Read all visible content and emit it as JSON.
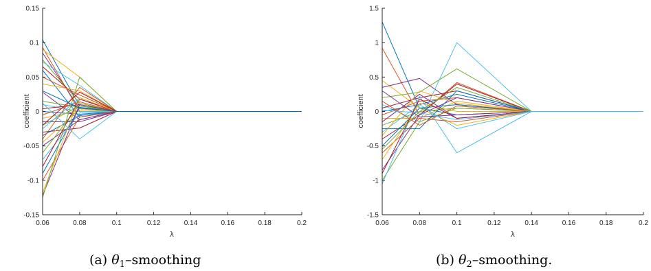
{
  "chart_data": [
    {
      "type": "line",
      "panel": "a",
      "caption": {
        "prefix": "(a) ",
        "symbol": "θ",
        "subscript": "1",
        "suffix": "–smoothing"
      },
      "xlabel": "λ",
      "ylabel": "coefficient",
      "xlim": [
        0.06,
        0.2
      ],
      "ylim": [
        -0.15,
        0.15
      ],
      "xticks": [
        0.06,
        0.08,
        0.1,
        0.12,
        0.14,
        0.16,
        0.18,
        0.2
      ],
      "xtick_labels": [
        "0.06",
        "0.08",
        "0.1",
        "0.12",
        "0.14",
        "0.16",
        "0.18",
        "0.2"
      ],
      "yticks": [
        -0.15,
        -0.1,
        -0.05,
        0,
        0.05,
        0.1,
        0.15
      ],
      "ytick_labels": [
        "-0.15",
        "-0.1",
        "-0.05",
        "0",
        "0.05",
        "0.1",
        "0.15"
      ],
      "grid": false,
      "legend": "none",
      "x": [
        0.06,
        0.08,
        0.1,
        0.12,
        0.14,
        0.16,
        0.18,
        0.2
      ],
      "series_values": [
        [
          0.104,
          0.008,
          0,
          0,
          0,
          0,
          0,
          0
        ],
        [
          0.093,
          0.0,
          0,
          0,
          0,
          0,
          0,
          0
        ],
        [
          0.09,
          0.05,
          0,
          0,
          0,
          0,
          0,
          0
        ],
        [
          0.085,
          0.004,
          0,
          0,
          0,
          0,
          0,
          0
        ],
        [
          0.075,
          0.012,
          0,
          0,
          0,
          0,
          0,
          0
        ],
        [
          0.072,
          0.038,
          0,
          0,
          0,
          0,
          0,
          0
        ],
        [
          0.065,
          0.018,
          0,
          0,
          0,
          0,
          0,
          0
        ],
        [
          0.06,
          -0.008,
          0,
          0,
          0,
          0,
          0,
          0
        ],
        [
          0.05,
          0.024,
          0,
          0,
          0,
          0,
          0,
          0
        ],
        [
          0.04,
          0.03,
          0,
          0,
          0,
          0,
          0,
          0
        ],
        [
          0.028,
          -0.012,
          0,
          0,
          0,
          0,
          0,
          0
        ],
        [
          0.015,
          0.006,
          0,
          0,
          0,
          0,
          0,
          0
        ],
        [
          0.01,
          0.0,
          0,
          0,
          0,
          0,
          0,
          0
        ],
        [
          0.004,
          0.01,
          0,
          0,
          0,
          0,
          0,
          0
        ],
        [
          0.0,
          -0.004,
          0,
          0,
          0,
          0,
          0,
          0
        ],
        [
          -0.005,
          0.014,
          0,
          0,
          0,
          0,
          0,
          0
        ],
        [
          -0.01,
          0.002,
          0,
          0,
          0,
          0,
          0,
          0
        ],
        [
          -0.015,
          -0.015,
          0,
          0,
          0,
          0,
          0,
          0
        ],
        [
          -0.02,
          0.008,
          0,
          0,
          0,
          0,
          0,
          0
        ],
        [
          -0.025,
          0.02,
          0,
          0,
          0,
          0,
          0,
          0
        ],
        [
          -0.03,
          -0.024,
          0,
          0,
          0,
          0,
          0,
          0
        ],
        [
          -0.035,
          -0.006,
          0,
          0,
          0,
          0,
          0,
          0
        ],
        [
          -0.04,
          0.035,
          0,
          0,
          0,
          0,
          0,
          0
        ],
        [
          -0.045,
          0.004,
          0,
          0,
          0,
          0,
          0,
          0
        ],
        [
          -0.05,
          -0.012,
          0,
          0,
          0,
          0,
          0,
          0
        ],
        [
          -0.06,
          0.01,
          0,
          0,
          0,
          0,
          0,
          0
        ],
        [
          -0.07,
          -0.002,
          0,
          0,
          0,
          0,
          0,
          0
        ],
        [
          -0.08,
          0.018,
          0,
          0,
          0,
          0,
          0,
          0
        ],
        [
          -0.09,
          0.006,
          0,
          0,
          0,
          0,
          0,
          0
        ],
        [
          -0.1,
          -0.008,
          0,
          0,
          0,
          0,
          0,
          0
        ],
        [
          -0.118,
          0.02,
          0,
          0,
          0,
          0,
          0,
          0
        ],
        [
          -0.122,
          0.01,
          0,
          0,
          0,
          0,
          0,
          0
        ],
        [
          -0.125,
          0.05,
          0,
          0,
          0,
          0,
          0,
          0
        ],
        [
          0.012,
          -0.04,
          0,
          0,
          0,
          0,
          0,
          0
        ],
        [
          -0.02,
          0.028,
          0,
          0,
          0,
          0,
          0,
          0
        ],
        [
          0.03,
          0.005,
          0,
          0,
          0,
          0,
          0,
          0
        ]
      ]
    },
    {
      "type": "line",
      "panel": "b",
      "caption": {
        "prefix": "(b) ",
        "symbol": "θ",
        "subscript": "2",
        "suffix": "–smoothing."
      },
      "xlabel": "λ",
      "ylabel": "coefficient",
      "xlim": [
        0.06,
        0.2
      ],
      "ylim": [
        -1.5,
        1.5
      ],
      "xticks": [
        0.06,
        0.08,
        0.1,
        0.12,
        0.14,
        0.16,
        0.18,
        0.2
      ],
      "xtick_labels": [
        "0.06",
        "0.08",
        "0.1",
        "0.12",
        "0.14",
        "0.16",
        "0.18",
        "0.2"
      ],
      "yticks": [
        -1.5,
        -1,
        -0.5,
        0,
        0.5,
        1,
        1.5
      ],
      "ytick_labels": [
        "-1.5",
        "-1",
        "-0.5",
        "0",
        "0.5",
        "1",
        "1.5"
      ],
      "grid": false,
      "legend": "none",
      "x": [
        0.06,
        0.08,
        0.1,
        0.14,
        0.16,
        0.18,
        0.2
      ],
      "series_values": [
        [
          1.3,
          0.05,
          -0.05,
          0,
          0,
          0,
          0
        ],
        [
          0.92,
          -0.05,
          0.42,
          0,
          0,
          0,
          0
        ],
        [
          0.45,
          0.05,
          -0.2,
          0,
          0,
          0,
          0
        ],
        [
          0.35,
          0.48,
          0.1,
          0,
          0,
          0,
          0
        ],
        [
          0.2,
          0.28,
          0.62,
          0,
          0,
          0,
          0
        ],
        [
          0.1,
          -0.15,
          1.0,
          0,
          0,
          0,
          0
        ],
        [
          0.05,
          0.2,
          0.3,
          0,
          0,
          0,
          0
        ],
        [
          0.0,
          0.1,
          0.25,
          0,
          0,
          0,
          0
        ],
        [
          -0.05,
          0.15,
          0.2,
          0,
          0,
          0,
          0
        ],
        [
          -0.1,
          -0.1,
          0.15,
          0,
          0,
          0,
          0
        ],
        [
          -0.15,
          0.25,
          -0.1,
          0,
          0,
          0,
          0
        ],
        [
          -0.2,
          0.0,
          0.05,
          0,
          0,
          0,
          0
        ],
        [
          -0.3,
          0.1,
          -0.25,
          0,
          0,
          0,
          0
        ],
        [
          -0.4,
          -0.05,
          0.4,
          0,
          0,
          0,
          0
        ],
        [
          -0.5,
          0.05,
          0.1,
          0,
          0,
          0,
          0
        ],
        [
          -0.6,
          -0.1,
          -0.15,
          0,
          0,
          0,
          0
        ],
        [
          -0.7,
          0.12,
          0.0,
          0,
          0,
          0,
          0
        ],
        [
          -0.85,
          -0.05,
          0.2,
          0,
          0,
          0,
          0
        ],
        [
          -1.0,
          -0.15,
          0.05,
          0,
          0,
          0,
          0
        ],
        [
          -1.05,
          0.22,
          -0.6,
          0,
          0,
          0,
          0
        ],
        [
          -0.9,
          0.18,
          -0.1,
          0,
          0,
          0,
          0
        ],
        [
          -0.25,
          -0.25,
          0.3,
          0,
          0,
          0,
          0
        ],
        [
          0.15,
          -0.2,
          0.08,
          0,
          0,
          0,
          0
        ],
        [
          -0.35,
          0.3,
          0.12,
          0,
          0,
          0,
          0
        ],
        [
          0.3,
          -0.08,
          -0.05,
          0,
          0,
          0,
          0
        ],
        [
          -0.55,
          0.0,
          0.35,
          0,
          0,
          0,
          0
        ],
        [
          0.02,
          -0.02,
          -0.12,
          0,
          0,
          0,
          0
        ]
      ]
    }
  ],
  "colors": [
    "#0072bd",
    "#d95319",
    "#edb120",
    "#7e2f8e",
    "#77ac30",
    "#4dbeee",
    "#a2142f"
  ]
}
